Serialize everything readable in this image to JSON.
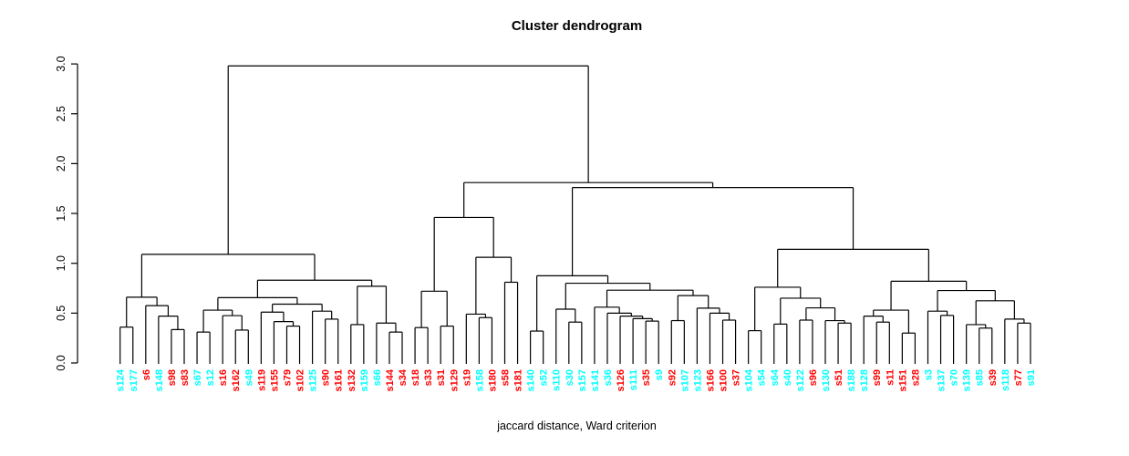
{
  "title": "Cluster dendrogram",
  "subtitle": "jaccard distance, Ward criterion",
  "colors": {
    "red": "#FF0000",
    "cyan": "#00FFFF",
    "line": "#000000"
  },
  "axis": {
    "ticks": [
      "0.0",
      "0.5",
      "1.0",
      "1.5",
      "2.0",
      "2.5",
      "3.0"
    ]
  },
  "chart_data": {
    "type": "dendrogram",
    "title": "Cluster dendrogram",
    "xlabel": "jaccard distance, Ward criterion",
    "ylabel": "",
    "ylim": [
      0,
      3
    ],
    "leaf_count": 72,
    "leaves": [
      {
        "label": "s124",
        "color": "cyan"
      },
      {
        "label": "s177",
        "color": "cyan"
      },
      {
        "label": "s6",
        "color": "red"
      },
      {
        "label": "s148",
        "color": "cyan"
      },
      {
        "label": "s98",
        "color": "red"
      },
      {
        "label": "s83",
        "color": "red"
      },
      {
        "label": "s67",
        "color": "cyan"
      },
      {
        "label": "s12",
        "color": "cyan"
      },
      {
        "label": "s16",
        "color": "red"
      },
      {
        "label": "s162",
        "color": "red"
      },
      {
        "label": "s49",
        "color": "cyan"
      },
      {
        "label": "s119",
        "color": "red"
      },
      {
        "label": "s155",
        "color": "red"
      },
      {
        "label": "s79",
        "color": "red"
      },
      {
        "label": "s102",
        "color": "red"
      },
      {
        "label": "s125",
        "color": "cyan"
      },
      {
        "label": "s90",
        "color": "red"
      },
      {
        "label": "s161",
        "color": "red"
      },
      {
        "label": "s132",
        "color": "red"
      },
      {
        "label": "s159",
        "color": "cyan"
      },
      {
        "label": "s66",
        "color": "cyan"
      },
      {
        "label": "s144",
        "color": "red"
      },
      {
        "label": "s34",
        "color": "red"
      },
      {
        "label": "s18",
        "color": "red"
      },
      {
        "label": "s33",
        "color": "red"
      },
      {
        "label": "s31",
        "color": "red"
      },
      {
        "label": "s129",
        "color": "red"
      },
      {
        "label": "s19",
        "color": "red"
      },
      {
        "label": "s158",
        "color": "cyan"
      },
      {
        "label": "s180",
        "color": "red"
      },
      {
        "label": "s58",
        "color": "red"
      },
      {
        "label": "s181",
        "color": "red"
      },
      {
        "label": "s140",
        "color": "cyan"
      },
      {
        "label": "s52",
        "color": "cyan"
      },
      {
        "label": "s110",
        "color": "cyan"
      },
      {
        "label": "s30",
        "color": "cyan"
      },
      {
        "label": "s157",
        "color": "cyan"
      },
      {
        "label": "s141",
        "color": "cyan"
      },
      {
        "label": "s36",
        "color": "cyan"
      },
      {
        "label": "s126",
        "color": "red"
      },
      {
        "label": "s111",
        "color": "cyan"
      },
      {
        "label": "s35",
        "color": "red"
      },
      {
        "label": "s9",
        "color": "cyan"
      },
      {
        "label": "s92",
        "color": "red"
      },
      {
        "label": "s107",
        "color": "cyan"
      },
      {
        "label": "s123",
        "color": "cyan"
      },
      {
        "label": "s166",
        "color": "red"
      },
      {
        "label": "s100",
        "color": "red"
      },
      {
        "label": "s37",
        "color": "red"
      },
      {
        "label": "s104",
        "color": "cyan"
      },
      {
        "label": "s54",
        "color": "cyan"
      },
      {
        "label": "s64",
        "color": "cyan"
      },
      {
        "label": "s40",
        "color": "cyan"
      },
      {
        "label": "s122",
        "color": "cyan"
      },
      {
        "label": "s96",
        "color": "red"
      },
      {
        "label": "s130",
        "color": "cyan"
      },
      {
        "label": "s51",
        "color": "red"
      },
      {
        "label": "s188",
        "color": "cyan"
      },
      {
        "label": "s128",
        "color": "cyan"
      },
      {
        "label": "s99",
        "color": "red"
      },
      {
        "label": "s11",
        "color": "red"
      },
      {
        "label": "s151",
        "color": "red"
      },
      {
        "label": "s28",
        "color": "red"
      },
      {
        "label": "s3",
        "color": "cyan"
      },
      {
        "label": "s137",
        "color": "cyan"
      },
      {
        "label": "s70",
        "color": "cyan"
      },
      {
        "label": "s139",
        "color": "cyan"
      },
      {
        "label": "s85",
        "color": "cyan"
      },
      {
        "label": "s39",
        "color": "red"
      },
      {
        "label": "s118",
        "color": "cyan"
      },
      {
        "label": "s77",
        "color": "red"
      },
      {
        "label": "s91",
        "color": "cyan"
      }
    ],
    "tree": {
      "h": 2.98,
      "c": [
        {
          "h": 1.09,
          "c": [
            {
              "h": 0.66,
              "c": [
                {
                  "h": 0.36,
                  "c": [
                    "s124",
                    "s177"
                  ]
                },
                {
                  "h": 0.575,
                  "c": [
                    "s6",
                    {
                      "h": 0.47,
                      "c": [
                        "s148",
                        {
                          "h": 0.335,
                          "c": [
                            "s98",
                            "s83"
                          ]
                        }
                      ]
                    }
                  ]
                }
              ]
            },
            {
              "h": 0.83,
              "c": [
                {
                  "h": 0.655,
                  "c": [
                    {
                      "h": 0.53,
                      "c": [
                        {
                          "h": 0.31,
                          "c": [
                            "s67",
                            "s12"
                          ]
                        },
                        {
                          "h": 0.475,
                          "c": [
                            "s16",
                            {
                              "h": 0.33,
                              "c": [
                                "s162",
                                "s49"
                              ]
                            }
                          ]
                        }
                      ]
                    },
                    {
                      "h": 0.59,
                      "c": [
                        {
                          "h": 0.51,
                          "c": [
                            "s119",
                            {
                              "h": 0.415,
                              "c": [
                                "s155",
                                {
                                  "h": 0.37,
                                  "c": [
                                    "s79",
                                    "s102"
                                  ]
                                }
                              ]
                            }
                          ]
                        },
                        {
                          "h": 0.52,
                          "c": [
                            "s125",
                            {
                              "h": 0.44,
                              "c": [
                                "s90",
                                "s161"
                              ]
                            }
                          ]
                        }
                      ]
                    }
                  ]
                },
                {
                  "h": 0.77,
                  "c": [
                    {
                      "h": 0.385,
                      "c": [
                        "s132",
                        "s159"
                      ]
                    },
                    {
                      "h": 0.4,
                      "c": [
                        "s66",
                        {
                          "h": 0.31,
                          "c": [
                            "s144",
                            "s34"
                          ]
                        }
                      ]
                    }
                  ]
                }
              ]
            }
          ]
        },
        {
          "h": 1.81,
          "c": [
            {
              "h": 1.46,
              "c": [
                {
                  "h": 0.72,
                  "c": [
                    {
                      "h": 0.355,
                      "c": [
                        "s18",
                        "s33"
                      ]
                    },
                    {
                      "h": 0.37,
                      "c": [
                        "s31",
                        "s129"
                      ]
                    }
                  ]
                },
                {
                  "h": 1.06,
                  "c": [
                    {
                      "h": 0.49,
                      "c": [
                        "s19",
                        {
                          "h": 0.455,
                          "c": [
                            "s158",
                            "s180"
                          ]
                        }
                      ]
                    },
                    {
                      "h": 0.81,
                      "c": [
                        "s58",
                        "s181"
                      ]
                    }
                  ]
                }
              ]
            },
            {
              "h": 1.76,
              "c": [
                {
                  "h": 0.875,
                  "c": [
                    {
                      "h": 0.32,
                      "c": [
                        "s140",
                        "s52"
                      ]
                    },
                    {
                      "h": 0.8,
                      "c": [
                        {
                          "h": 0.54,
                          "c": [
                            "s110",
                            {
                              "h": 0.41,
                              "c": [
                                "s30",
                                "s157"
                              ]
                            }
                          ]
                        },
                        {
                          "h": 0.73,
                          "c": [
                            {
                              "h": 0.56,
                              "c": [
                                "s141",
                                {
                                  "h": 0.5,
                                  "c": [
                                    "s36",
                                    {
                                      "h": 0.47,
                                      "c": [
                                        "s126",
                                        {
                                          "h": 0.445,
                                          "c": [
                                            "s111",
                                            {
                                              "h": 0.42,
                                              "c": [
                                                "s35",
                                                "s9"
                                              ]
                                            }
                                          ]
                                        }
                                      ]
                                    }
                                  ]
                                }
                              ]
                            },
                            {
                              "h": 0.676,
                              "c": [
                                {
                                  "h": 0.425,
                                  "c": [
                                    "s92",
                                    "s107"
                                  ]
                                },
                                {
                                  "h": 0.55,
                                  "c": [
                                    "s123",
                                    {
                                      "h": 0.5,
                                      "c": [
                                        "s166",
                                        {
                                          "h": 0.43,
                                          "c": [
                                            "s100",
                                            "s37"
                                          ]
                                        }
                                      ]
                                    }
                                  ]
                                }
                              ]
                            }
                          ]
                        }
                      ]
                    }
                  ]
                },
                {
                  "h": 1.14,
                  "c": [
                    {
                      "h": 0.76,
                      "c": [
                        {
                          "h": 0.324,
                          "c": [
                            "s104",
                            "s54"
                          ]
                        },
                        {
                          "h": 0.65,
                          "c": [
                            {
                              "h": 0.39,
                              "c": [
                                "s64",
                                "s40"
                              ]
                            },
                            {
                              "h": 0.553,
                              "c": [
                                {
                                  "h": 0.43,
                                  "c": [
                                    "s122",
                                    "s96"
                                  ]
                                },
                                {
                                  "h": 0.425,
                                  "c": [
                                    "s130",
                                    {
                                      "h": 0.4,
                                      "c": [
                                        "s51",
                                        "s188"
                                      ]
                                    }
                                  ]
                                }
                              ]
                            }
                          ]
                        }
                      ]
                    },
                    {
                      "h": 0.82,
                      "c": [
                        {
                          "h": 0.53,
                          "c": [
                            {
                              "h": 0.47,
                              "c": [
                                "s128",
                                {
                                  "h": 0.41,
                                  "c": [
                                    "s99",
                                    "s11"
                                  ]
                                }
                              ]
                            },
                            {
                              "h": 0.3,
                              "c": [
                                "s151",
                                "s28"
                              ]
                            }
                          ]
                        },
                        {
                          "h": 0.727,
                          "c": [
                            {
                              "h": 0.52,
                              "c": [
                                "s3",
                                {
                                  "h": 0.477,
                                  "c": [
                                    "s137",
                                    "s70"
                                  ]
                                }
                              ]
                            },
                            {
                              "h": 0.624,
                              "c": [
                                {
                                  "h": 0.385,
                                  "c": [
                                    "s139",
                                    {
                                      "h": 0.35,
                                      "c": [
                                        "s85",
                                        "s39"
                                      ]
                                    }
                                  ]
                                },
                                {
                                  "h": 0.44,
                                  "c": [
                                    "s118",
                                    {
                                      "h": 0.4,
                                      "c": [
                                        "s77",
                                        "s91"
                                      ]
                                    }
                                  ]
                                }
                              ]
                            }
                          ]
                        }
                      ]
                    }
                  ]
                }
              ]
            }
          ]
        }
      ]
    }
  }
}
